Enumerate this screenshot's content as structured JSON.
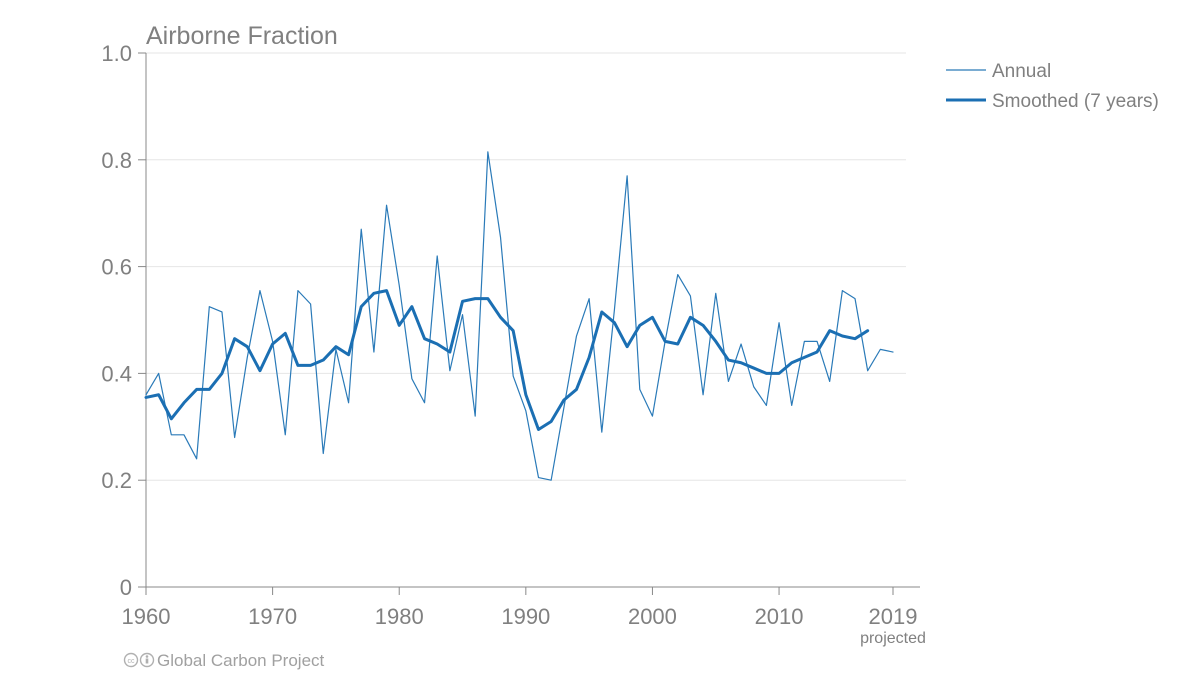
{
  "chart_data": {
    "type": "line",
    "title": "Airborne Fraction",
    "xlabel": "",
    "ylabel": "",
    "xlim": [
      1960,
      2019
    ],
    "ylim": [
      0,
      1.0
    ],
    "grid": true,
    "legend_position": "top-right",
    "x_ticks": [
      {
        "value": 1960,
        "label": "1960"
      },
      {
        "value": 1970,
        "label": "1970"
      },
      {
        "value": 1980,
        "label": "1980"
      },
      {
        "value": 1990,
        "label": "1990"
      },
      {
        "value": 2000,
        "label": "2000"
      },
      {
        "value": 2010,
        "label": "2010"
      },
      {
        "value": 2019,
        "label": "2019"
      }
    ],
    "x_tick_note": "projected",
    "y_ticks": [
      {
        "value": 0,
        "label": "0"
      },
      {
        "value": 0.2,
        "label": "0.2"
      },
      {
        "value": 0.4,
        "label": "0.4"
      },
      {
        "value": 0.6,
        "label": "0.6"
      },
      {
        "value": 0.8,
        "label": "0.8"
      },
      {
        "value": 1.0,
        "label": "1.0"
      }
    ],
    "series": [
      {
        "name": "Annual",
        "color": "#2a7ab8",
        "style": "thin",
        "x": [
          1960,
          1961,
          1962,
          1963,
          1964,
          1965,
          1966,
          1967,
          1968,
          1969,
          1970,
          1971,
          1972,
          1973,
          1974,
          1975,
          1976,
          1977,
          1978,
          1979,
          1980,
          1981,
          1982,
          1983,
          1984,
          1985,
          1986,
          1987,
          1988,
          1989,
          1990,
          1991,
          1992,
          1993,
          1994,
          1995,
          1996,
          1997,
          1998,
          1999,
          2000,
          2001,
          2002,
          2003,
          2004,
          2005,
          2006,
          2007,
          2008,
          2009,
          2010,
          2011,
          2012,
          2013,
          2014,
          2015,
          2016,
          2017,
          2018,
          2019
        ],
        "y": [
          0.36,
          0.4,
          0.285,
          0.285,
          0.24,
          0.525,
          0.515,
          0.28,
          0.43,
          0.555,
          0.46,
          0.285,
          0.555,
          0.53,
          0.25,
          0.445,
          0.345,
          0.67,
          0.44,
          0.715,
          0.565,
          0.39,
          0.345,
          0.62,
          0.405,
          0.51,
          0.32,
          0.815,
          0.655,
          0.395,
          0.33,
          0.205,
          0.2,
          0.335,
          0.47,
          0.54,
          0.29,
          0.52,
          0.77,
          0.37,
          0.32,
          0.46,
          0.585,
          0.545,
          0.36,
          0.55,
          0.385,
          0.455,
          0.375,
          0.34,
          0.495,
          0.34,
          0.46,
          0.46,
          0.385,
          0.555,
          0.54,
          0.405,
          0.445,
          0.44
        ]
      },
      {
        "name": "Smoothed (7 years)",
        "color": "#1b6fb3",
        "style": "thick",
        "x": [
          1960,
          1961,
          1962,
          1963,
          1964,
          1965,
          1966,
          1967,
          1968,
          1969,
          1970,
          1971,
          1972,
          1973,
          1974,
          1975,
          1976,
          1977,
          1978,
          1979,
          1980,
          1981,
          1982,
          1983,
          1984,
          1985,
          1986,
          1987,
          1988,
          1989,
          1990,
          1991,
          1992,
          1993,
          1994,
          1995,
          1996,
          1997,
          1998,
          1999,
          2000,
          2001,
          2002,
          2003,
          2004,
          2005,
          2006,
          2007,
          2008,
          2009,
          2010,
          2011,
          2012,
          2013,
          2014,
          2015,
          2016,
          2017
        ],
        "y": [
          0.355,
          0.36,
          0.315,
          0.345,
          0.37,
          0.37,
          0.4,
          0.465,
          0.45,
          0.405,
          0.455,
          0.475,
          0.415,
          0.415,
          0.425,
          0.45,
          0.435,
          0.525,
          0.55,
          0.555,
          0.49,
          0.525,
          0.465,
          0.455,
          0.44,
          0.535,
          0.54,
          0.54,
          0.505,
          0.48,
          0.36,
          0.295,
          0.31,
          0.35,
          0.37,
          0.43,
          0.515,
          0.495,
          0.45,
          0.49,
          0.505,
          0.46,
          0.455,
          0.505,
          0.49,
          0.46,
          0.425,
          0.42,
          0.41,
          0.4,
          0.4,
          0.42,
          0.43,
          0.44,
          0.48,
          0.47,
          0.465,
          0.48
        ]
      }
    ]
  },
  "footer": {
    "credit": "Global Carbon Project",
    "license_icon": "cc-by-icon"
  }
}
